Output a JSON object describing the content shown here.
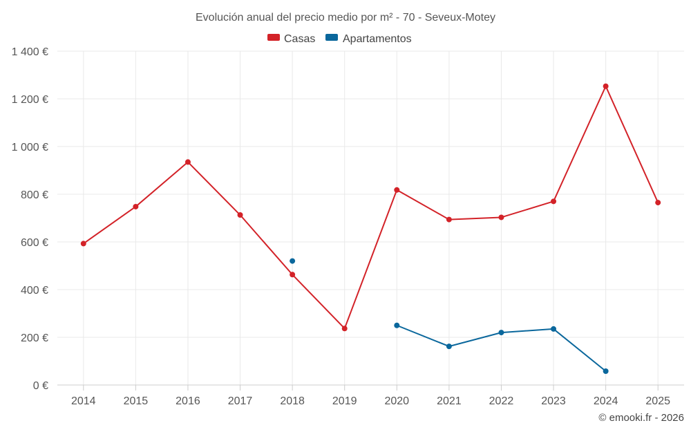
{
  "chart_data": {
    "type": "line",
    "title": "Evolución anual del precio medio por m² - 70 - Seveux-Motey",
    "categories": [
      "2014",
      "2015",
      "2016",
      "2017",
      "2018",
      "2019",
      "2020",
      "2021",
      "2022",
      "2023",
      "2024",
      "2025"
    ],
    "ylim": [
      0,
      1400
    ],
    "yticks": [
      0,
      200,
      400,
      600,
      800,
      1000,
      1200,
      1400
    ],
    "ytick_labels": [
      "0 €",
      "200 €",
      "400 €",
      "600 €",
      "800 €",
      "1 000 €",
      "1 200 €",
      "1 400 €"
    ],
    "grid": true,
    "legend_position": "top-center",
    "series": [
      {
        "name": "Casas",
        "color": "#d32228",
        "values": [
          593,
          748,
          935,
          713,
          463,
          237,
          818,
          694,
          703,
          770,
          1253,
          765
        ]
      },
      {
        "name": "Apartamentos",
        "color": "#0a679c",
        "values": [
          null,
          null,
          null,
          null,
          520,
          null,
          250,
          162,
          220,
          235,
          58,
          null
        ]
      }
    ],
    "credit": "© emooki.fr - 2026"
  }
}
